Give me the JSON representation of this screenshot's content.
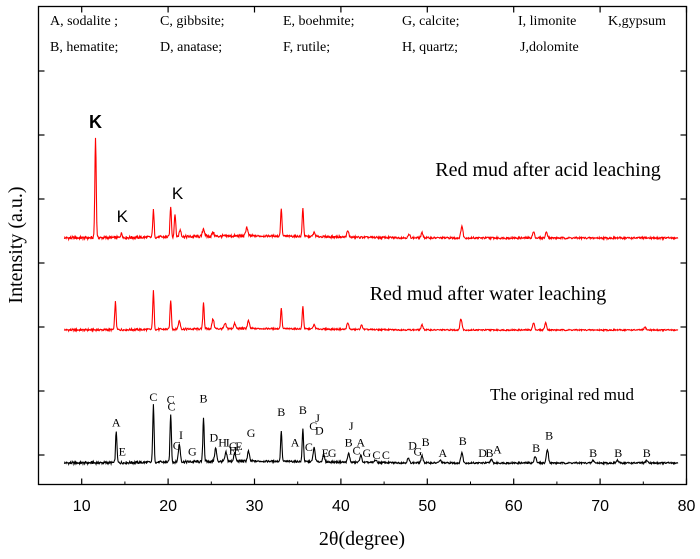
{
  "chart_data": {
    "type": "line",
    "title": "",
    "xlabel": "2θ(degree)",
    "ylabel": "Intensity (a.u.)",
    "xlim": [
      5,
      80
    ],
    "x_ticks": [
      10,
      20,
      30,
      40,
      50,
      60,
      70,
      80
    ],
    "y_ticks_labeled": false,
    "grid": false,
    "legend_lines": [
      [
        "A, sodalite ;",
        "C, gibbsite;",
        "E, boehmite;",
        "G, calcite;",
        "I, limonite",
        "K,gypsum"
      ],
      [
        "B, hematite;",
        "D, anatase;",
        "F, rutile;",
        "H, quartz;",
        "J,dolomite"
      ]
    ],
    "series": [
      {
        "name": "Red mud after acid leaching",
        "label": "Red mud after acid leaching",
        "color": "#ff0000",
        "baseline": 0.0,
        "peaks": [
          [
            11.6,
            1.0
          ],
          [
            14.6,
            0.04
          ],
          [
            18.3,
            0.27
          ],
          [
            20.3,
            0.31
          ],
          [
            20.8,
            0.24
          ],
          [
            21.4,
            0.07
          ],
          [
            24.1,
            0.08
          ],
          [
            25.2,
            0.04
          ],
          [
            29.1,
            0.09
          ],
          [
            33.1,
            0.28
          ],
          [
            35.6,
            0.29
          ],
          [
            36.9,
            0.04
          ],
          [
            40.8,
            0.06
          ],
          [
            47.9,
            0.03
          ],
          [
            49.4,
            0.05
          ],
          [
            54.0,
            0.12
          ],
          [
            62.3,
            0.06
          ],
          [
            63.8,
            0.06
          ]
        ]
      },
      {
        "name": "Red mud after water leaching",
        "label": "Red mud after water leaching",
        "color": "#ff0000",
        "baseline": 0.0,
        "peaks": [
          [
            13.9,
            0.4
          ],
          [
            18.3,
            0.55
          ],
          [
            20.3,
            0.42
          ],
          [
            21.3,
            0.12
          ],
          [
            24.1,
            0.38
          ],
          [
            25.2,
            0.14
          ],
          [
            26.6,
            0.07
          ],
          [
            27.7,
            0.07
          ],
          [
            29.3,
            0.11
          ],
          [
            33.1,
            0.3
          ],
          [
            35.6,
            0.33
          ],
          [
            36.9,
            0.06
          ],
          [
            40.8,
            0.09
          ],
          [
            42.4,
            0.06
          ],
          [
            49.4,
            0.07
          ],
          [
            53.9,
            0.16
          ],
          [
            62.3,
            0.1
          ],
          [
            63.7,
            0.1
          ],
          [
            75.2,
            0.04
          ]
        ]
      },
      {
        "name": "The original red mud",
        "label": "The original red mud",
        "color": "#000000",
        "baseline": 0.0,
        "peaks": [
          [
            14.0,
            0.36
          ],
          [
            18.3,
            0.65
          ],
          [
            20.3,
            0.55
          ],
          [
            21.3,
            0.2
          ],
          [
            24.1,
            0.5
          ],
          [
            25.5,
            0.15
          ],
          [
            26.7,
            0.1
          ],
          [
            27.7,
            0.09
          ],
          [
            29.3,
            0.11
          ],
          [
            33.1,
            0.35
          ],
          [
            35.6,
            0.38
          ],
          [
            36.9,
            0.16
          ],
          [
            38.0,
            0.08
          ],
          [
            40.9,
            0.1
          ],
          [
            42.3,
            0.08
          ],
          [
            44.0,
            0.03
          ],
          [
            47.8,
            0.05
          ],
          [
            49.4,
            0.08
          ],
          [
            51.5,
            0.03
          ],
          [
            54.0,
            0.12
          ],
          [
            57.4,
            0.04
          ],
          [
            62.5,
            0.08
          ],
          [
            63.9,
            0.16
          ],
          [
            69.2,
            0.03
          ],
          [
            72.0,
            0.03
          ],
          [
            75.4,
            0.03
          ]
        ]
      }
    ],
    "peak_labels": {
      "acid": [
        {
          "text": "K",
          "x": 11.6,
          "y": 1.04,
          "bold": true
        },
        {
          "text": "K",
          "x": 14.7,
          "y": 0.1
        },
        {
          "text": "K",
          "x": 21.1,
          "y": 0.33
        }
      ],
      "original": [
        {
          "text": "A",
          "x": 14.0,
          "y": 0.37
        },
        {
          "text": "E",
          "x": 14.7,
          "y": 0.04
        },
        {
          "text": "C",
          "x": 18.3,
          "y": 0.66
        },
        {
          "text": "C",
          "x": 20.3,
          "y": 0.63
        },
        {
          "text": "C",
          "x": 20.4,
          "y": 0.55
        },
        {
          "text": "C",
          "x": 21.0,
          "y": 0.11
        },
        {
          "text": "I",
          "x": 21.5,
          "y": 0.23
        },
        {
          "text": "G",
          "x": 22.8,
          "y": 0.04
        },
        {
          "text": "B",
          "x": 24.1,
          "y": 0.64
        },
        {
          "text": "D",
          "x": 25.3,
          "y": 0.2
        },
        {
          "text": "H",
          "x": 26.3,
          "y": 0.14
        },
        {
          "text": "I",
          "x": 26.9,
          "y": 0.14
        },
        {
          "text": "C",
          "x": 27.5,
          "y": 0.1
        },
        {
          "text": "E",
          "x": 28.2,
          "y": 0.1
        },
        {
          "text": "G",
          "x": 29.6,
          "y": 0.25
        },
        {
          "text": "F",
          "x": 27.4,
          "y": 0.05
        },
        {
          "text": "E",
          "x": 28.0,
          "y": 0.05
        },
        {
          "text": "B",
          "x": 33.1,
          "y": 0.49
        },
        {
          "text": "A",
          "x": 34.7,
          "y": 0.14
        },
        {
          "text": "B",
          "x": 35.6,
          "y": 0.51
        },
        {
          "text": "J",
          "x": 37.3,
          "y": 0.42
        },
        {
          "text": "C",
          "x": 36.8,
          "y": 0.33
        },
        {
          "text": "D",
          "x": 37.5,
          "y": 0.28
        },
        {
          "text": "C",
          "x": 36.3,
          "y": 0.09
        },
        {
          "text": "E",
          "x": 38.2,
          "y": 0.02
        },
        {
          "text": "G",
          "x": 39.0,
          "y": 0.02
        },
        {
          "text": "J",
          "x": 41.2,
          "y": 0.33
        },
        {
          "text": "B",
          "x": 40.9,
          "y": 0.14
        },
        {
          "text": "A",
          "x": 42.3,
          "y": 0.14
        },
        {
          "text": "C",
          "x": 41.8,
          "y": 0.05
        },
        {
          "text": "G",
          "x": 43.0,
          "y": 0.02
        },
        {
          "text": "C",
          "x": 44.1,
          "y": 0.0
        },
        {
          "text": "C",
          "x": 45.2,
          "y": 0.0
        },
        {
          "text": "D",
          "x": 48.3,
          "y": 0.11
        },
        {
          "text": "G",
          "x": 48.9,
          "y": 0.04
        },
        {
          "text": "B",
          "x": 49.8,
          "y": 0.15
        },
        {
          "text": "A",
          "x": 51.8,
          "y": 0.02
        },
        {
          "text": "B",
          "x": 54.1,
          "y": 0.16
        },
        {
          "text": "D",
          "x": 56.4,
          "y": 0.02
        },
        {
          "text": "B",
          "x": 57.2,
          "y": 0.02
        },
        {
          "text": "A",
          "x": 58.1,
          "y": 0.06
        },
        {
          "text": "B",
          "x": 62.6,
          "y": 0.08
        },
        {
          "text": "B",
          "x": 64.1,
          "y": 0.22
        },
        {
          "text": "B",
          "x": 69.2,
          "y": 0.02
        },
        {
          "text": "B",
          "x": 72.1,
          "y": 0.02
        },
        {
          "text": "B",
          "x": 75.4,
          "y": 0.02
        }
      ]
    }
  }
}
